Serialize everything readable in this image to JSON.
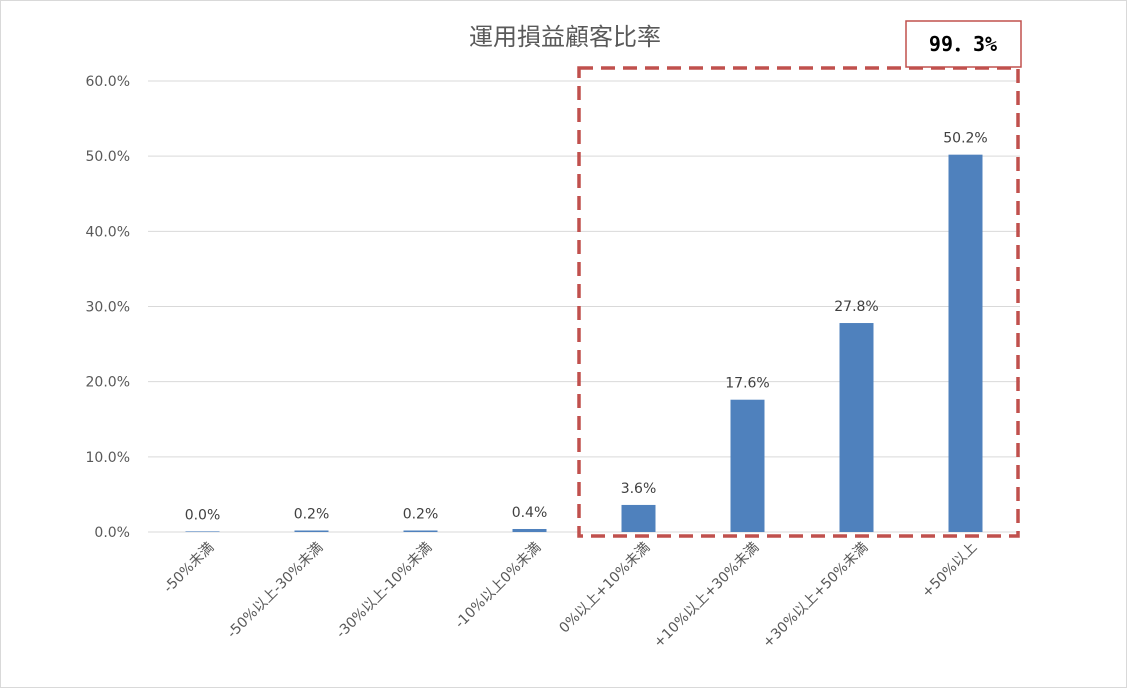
{
  "chart_data": {
    "type": "bar",
    "title": "運用損益顧客比率",
    "xlabel": "",
    "ylabel": "",
    "ylim": [
      0,
      60
    ],
    "yticks": [
      "0.0%",
      "10.0%",
      "20.0%",
      "30.0%",
      "40.0%",
      "50.0%",
      "60.0%"
    ],
    "categories": [
      "-50%未満",
      "-50%以上-30%未満",
      "-30%以上-10%未満",
      "-10%以上0%未満",
      "0%以上+10%未満",
      "+10%以上+30%未満",
      "+30%以上+50%未満",
      "+50%以上"
    ],
    "values": [
      0.0,
      0.2,
      0.2,
      0.4,
      3.6,
      17.6,
      27.8,
      50.2
    ],
    "data_labels": [
      "0.0%",
      "0.2%",
      "0.2%",
      "0.4%",
      "3.6%",
      "17.6%",
      "27.8%",
      "50.2%"
    ],
    "grid": true,
    "annotation": {
      "text": "99．3%",
      "highlighted_categories": [
        "0%以上+10%未満",
        "+10%以上+30%未満",
        "+30%以上+50%未満",
        "+50%以上"
      ]
    },
    "colors": {
      "bar": "#4f81bd",
      "highlight": "#c0504d",
      "grid": "#d9d9d9"
    }
  }
}
